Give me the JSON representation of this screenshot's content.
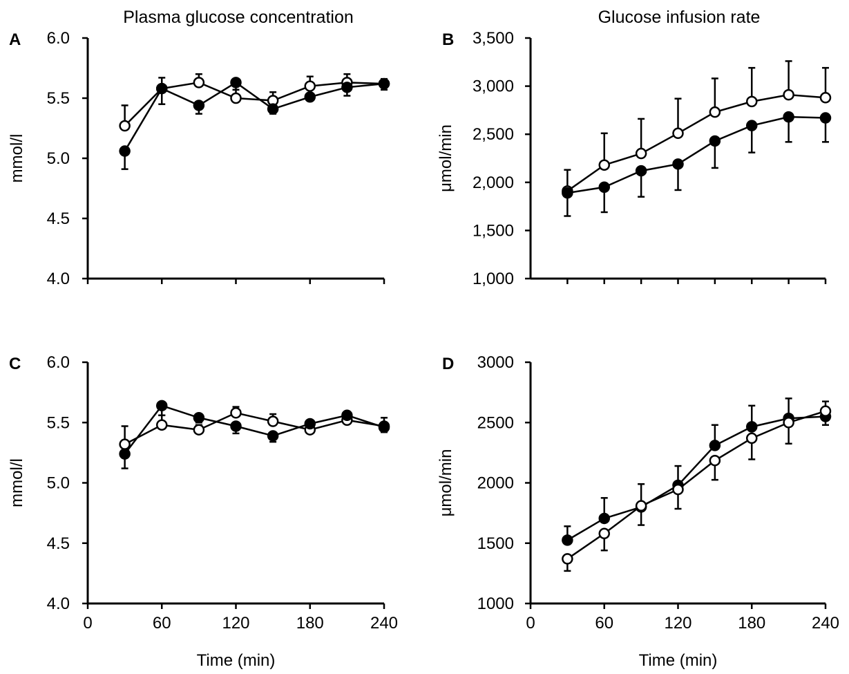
{
  "figure": {
    "column_titles": [
      "Plasma glucose concentration",
      "Glucose infusion rate"
    ],
    "colors": {
      "ink": "#000000",
      "open_fill": "#ffffff"
    }
  },
  "chart_data": [
    {
      "panel": "A",
      "type": "line",
      "title": "Plasma glucose concentration",
      "xlabel": "",
      "ylabel": "mmol/l",
      "x": [
        30,
        60,
        90,
        120,
        150,
        180,
        210,
        240
      ],
      "xlim": [
        0,
        240
      ],
      "xticks": [
        0,
        60,
        120,
        180,
        240
      ],
      "xtick_labels": [],
      "ylim": [
        4.0,
        6.0
      ],
      "yticks": [
        4.0,
        4.5,
        5.0,
        5.5,
        6.0
      ],
      "ytick_labels": [
        "4.0",
        "4.5",
        "5.0",
        "5.5",
        "6.0"
      ],
      "grid": false,
      "series": [
        {
          "marker": "open",
          "values": [
            5.27,
            5.58,
            5.63,
            5.5,
            5.48,
            5.6,
            5.63,
            5.62
          ],
          "error": [
            0.17,
            0.09,
            0.07,
            0.07,
            0.07,
            0.08,
            0.07,
            0.04
          ],
          "error_dir": "up"
        },
        {
          "marker": "filled",
          "values": [
            5.06,
            5.58,
            5.44,
            5.63,
            5.41,
            5.51,
            5.59,
            5.62
          ],
          "error": [
            0.15,
            0.13,
            0.07,
            0.06,
            0.04,
            0.03,
            0.07,
            0.05
          ],
          "error_dir": "down"
        }
      ]
    },
    {
      "panel": "B",
      "type": "line",
      "title": "Glucose infusion rate",
      "xlabel": "",
      "ylabel": "μmol/min",
      "x": [
        30,
        60,
        90,
        120,
        150,
        180,
        210,
        240
      ],
      "xlim": [
        0,
        240
      ],
      "xticks": [
        30,
        60,
        90,
        120,
        150,
        180,
        210,
        240
      ],
      "xtick_labels": [],
      "ylim": [
        1000,
        3500
      ],
      "yticks": [
        1000,
        1500,
        2000,
        2500,
        3000,
        3500
      ],
      "ytick_labels": [
        "1,000",
        "1,500",
        "2,000",
        "2,500",
        "3,000",
        "3,500"
      ],
      "grid": false,
      "series": [
        {
          "marker": "open",
          "values": [
            1910,
            2180,
            2300,
            2510,
            2730,
            2840,
            2910,
            2880
          ],
          "error": [
            220,
            330,
            360,
            360,
            350,
            350,
            350,
            310
          ],
          "error_dir": "up"
        },
        {
          "marker": "filled",
          "values": [
            1890,
            1950,
            2120,
            2190,
            2430,
            2590,
            2680,
            2670
          ],
          "error": [
            240,
            260,
            270,
            270,
            280,
            280,
            260,
            250
          ],
          "error_dir": "down"
        }
      ]
    },
    {
      "panel": "C",
      "type": "line",
      "title": "",
      "xlabel": "Time (min)",
      "ylabel": "mmol/l",
      "x": [
        30,
        60,
        90,
        120,
        150,
        180,
        210,
        240
      ],
      "xlim": [
        0,
        240
      ],
      "xticks": [
        0,
        60,
        120,
        180,
        240
      ],
      "xtick_labels": [
        "0",
        "60",
        "120",
        "180",
        "240"
      ],
      "ylim": [
        4.0,
        6.0
      ],
      "yticks": [
        4.0,
        4.5,
        5.0,
        5.5,
        6.0
      ],
      "ytick_labels": [
        "4.0",
        "4.5",
        "5.0",
        "5.5",
        "6.0"
      ],
      "grid": false,
      "series": [
        {
          "marker": "open",
          "values": [
            5.32,
            5.48,
            5.44,
            5.58,
            5.51,
            5.44,
            5.52,
            5.47
          ],
          "error": [
            0.15,
            0.08,
            0.04,
            0.05,
            0.06,
            0.04,
            0.04,
            0.07
          ],
          "error_dir": "up"
        },
        {
          "marker": "filled",
          "values": [
            5.24,
            5.64,
            5.54,
            5.47,
            5.39,
            5.49,
            5.56,
            5.46
          ],
          "error": [
            0.12,
            0.08,
            0.04,
            0.06,
            0.05,
            0.03,
            0.04,
            0.04
          ],
          "error_dir": "down"
        }
      ]
    },
    {
      "panel": "D",
      "type": "line",
      "title": "",
      "xlabel": "Time (min)",
      "ylabel": "μmol/min",
      "x": [
        30,
        60,
        90,
        120,
        150,
        180,
        210,
        240
      ],
      "xlim": [
        0,
        240
      ],
      "xticks": [
        0,
        60,
        120,
        180,
        240
      ],
      "xtick_labels": [
        "0",
        "60",
        "120",
        "180",
        "240"
      ],
      "ylim": [
        1000,
        3000
      ],
      "yticks": [
        1000,
        1500,
        2000,
        2500,
        3000
      ],
      "ytick_labels": [
        "1000",
        "1500",
        "2000",
        "2500",
        "3000"
      ],
      "grid": false,
      "series": [
        {
          "marker": "filled",
          "values": [
            1525,
            1705,
            1800,
            1980,
            2310,
            2465,
            2535,
            2550
          ],
          "error": [
            115,
            170,
            190,
            160,
            170,
            175,
            165,
            125
          ],
          "error_dir": "up"
        },
        {
          "marker": "open",
          "values": [
            1370,
            1580,
            1810,
            1945,
            2185,
            2370,
            2500,
            2595
          ],
          "error": [
            100,
            140,
            160,
            160,
            160,
            175,
            175,
            115
          ],
          "error_dir": "down"
        }
      ]
    }
  ]
}
